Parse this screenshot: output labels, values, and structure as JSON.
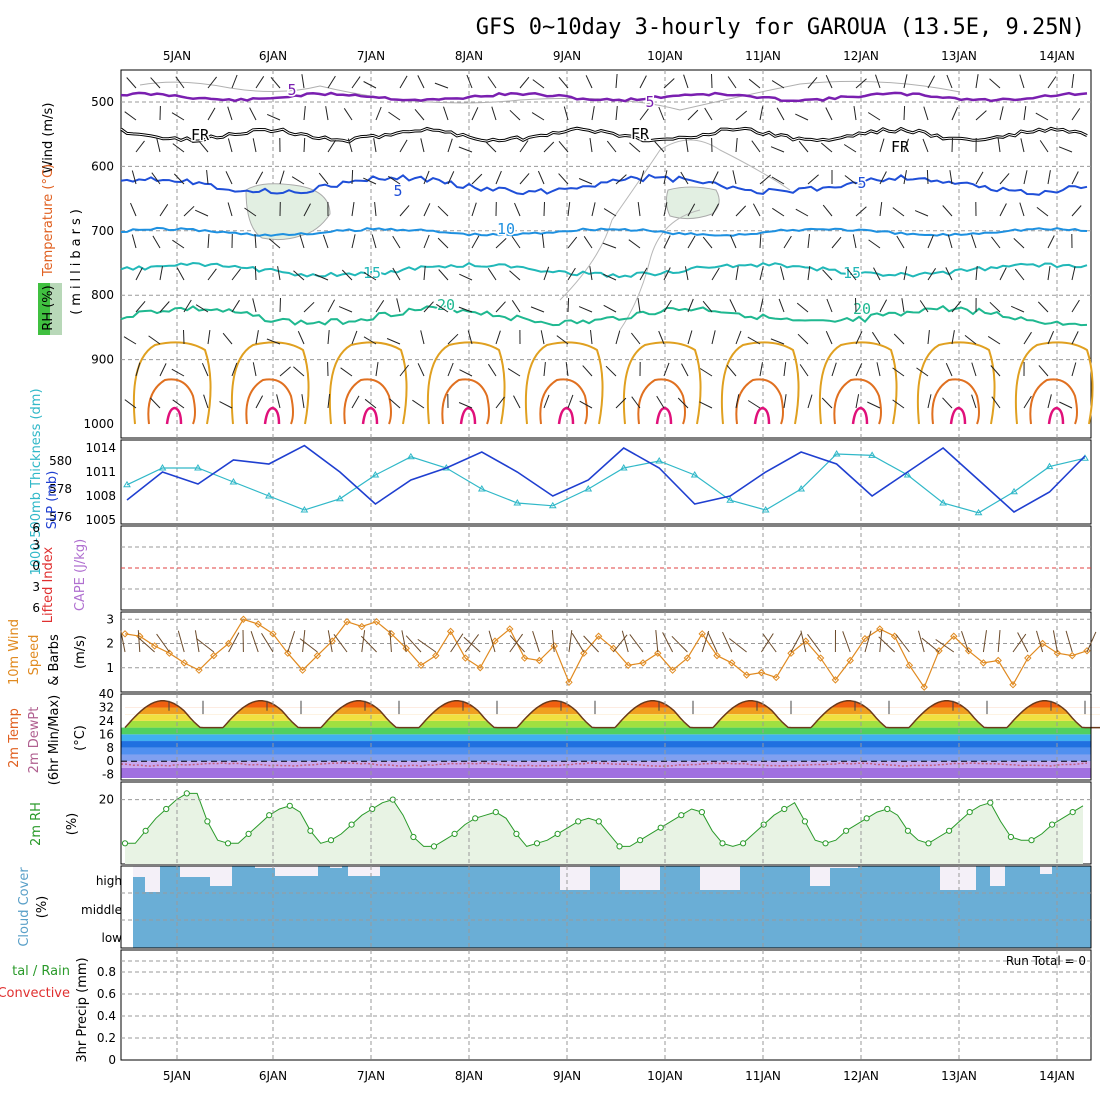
{
  "title": "GFS 0~10day 3-hourly for GAROUA (13.5E, 9.25N)",
  "colors": {
    "temp500": "#7a1fb0",
    "frz": "#000000",
    "t5": "#1f4fd8",
    "t10": "#1e90e0",
    "t15": "#21b8b8",
    "t20": "#1fb890",
    "t25": "#e0a020",
    "t30": "#e07020",
    "t35": "#e0107a",
    "slp": "#1f3fd0",
    "thick": "#30b8c8",
    "wind": "#e08a20",
    "barb": "#6b4a2a",
    "rh2m": "#2a9a2a",
    "rh2mfill": "#e8f3e4",
    "cloud": "#6aaed6",
    "precip": "#2a9a2a"
  },
  "days": [
    "5JAN",
    "6JAN",
    "7JAN",
    "8JAN",
    "9JAN",
    "10JAN",
    "11JAN",
    "12JAN",
    "13JAN",
    "14JAN"
  ],
  "panels": {
    "upper": {
      "ylabel_parts": [
        "Wind (m/s)",
        "Temperature (°C)",
        "(millibars)",
        "RH (%)"
      ],
      "wind_label": "Wind (m/s)",
      "temp_label": "Temperature (°C)",
      "mb_label": "(millibars)",
      "rh_label": "RH (%)",
      "levels": [
        500,
        600,
        700,
        800,
        900,
        1000
      ],
      "contour_labels": [
        {
          "text": "5",
          "color": "#7a1fb0"
        },
        {
          "text": "5",
          "color": "#7a1fb0"
        },
        {
          "text": "FR",
          "color": "#000000"
        },
        {
          "text": "FR",
          "color": "#000000"
        },
        {
          "text": "FR",
          "color": "#000000"
        },
        {
          "text": "5",
          "color": "#1f4fd8"
        },
        {
          "text": "5",
          "color": "#1f4fd8"
        },
        {
          "text": "10",
          "color": "#1e90e0"
        },
        {
          "text": "15",
          "color": "#21b8b8"
        },
        {
          "text": "15",
          "color": "#21b8b8"
        },
        {
          "text": "20",
          "color": "#1fb890"
        },
        {
          "text": "20",
          "color": "#1fb890"
        }
      ]
    },
    "slp": {
      "label_thick": "1000-500mb Thickness (dm)",
      "label_slp": "SLP (mb)",
      "thick_ticks": [
        576,
        578,
        580
      ],
      "slp_ticks": [
        1005,
        1008,
        1011,
        1014
      ]
    },
    "cape": {
      "label_li": "Lifted Index",
      "label_cape": "CAPE (J/kg)",
      "li_ticks": [
        "6",
        "3",
        "0",
        "3",
        "6"
      ]
    },
    "wind10": {
      "label": "10m Wind",
      "label2": "Speed",
      "label3": "& Barbs",
      "units": "(m/s)",
      "ticks": [
        1,
        2,
        3
      ]
    },
    "temp2m": {
      "label": "2m Temp",
      "label2": "2m DewPt",
      "label3": "(6hr Min/Max)",
      "units": "(°C)",
      "ticks": [
        "-8",
        "0",
        "8",
        "16",
        "24",
        "32",
        "40"
      ]
    },
    "rh2m": {
      "label": "2m RH",
      "units": "(%)",
      "ticks": [
        20
      ]
    },
    "cloud": {
      "label": "Cloud Cover",
      "units": "(%)",
      "ticks": [
        "high",
        "middle",
        "low"
      ]
    },
    "precip": {
      "label_a": "tal / Rain",
      "label_b": "Convective",
      "label_c": "3hr Precip (mm)",
      "run_total": "Run Total = 0",
      "ticks": [
        "0",
        "0.2",
        "0.4",
        "0.6",
        "0.8"
      ]
    }
  },
  "chart_data": [
    {
      "type": "line",
      "panel": "pressure-level temperature / wind / RH",
      "xlabel": "",
      "ylabel": "(millibars)",
      "ylim": [
        1000,
        450
      ],
      "y_log_like": false,
      "series": [
        {
          "name": "-5",
          "approx_level_mb": 495
        },
        {
          "name": "FR",
          "approx_level_mb": 550
        },
        {
          "name": "5",
          "approx_level_mb": 630
        },
        {
          "name": "10",
          "approx_level_mb": 700
        },
        {
          "name": "15",
          "approx_level_mb": 765
        },
        {
          "name": "20",
          "approx_level_mb": 835
        }
      ]
    },
    {
      "type": "line",
      "panel": "SLP and 1000-500mb thickness",
      "x": [
        0,
        3,
        6,
        9,
        12,
        15,
        18,
        21,
        24,
        27,
        30,
        33,
        36,
        39,
        42,
        45,
        48,
        51,
        54,
        57,
        60,
        63,
        66,
        69,
        72,
        75,
        78,
        81
      ],
      "series": [
        {
          "name": "SLP (mb)",
          "axis": "right",
          "values": [
            1007.5,
            1011,
            1009.5,
            1012.5,
            1012,
            1014.3,
            1011,
            1007,
            1010,
            1011.5,
            1013.5,
            1011,
            1008,
            1010,
            1014,
            1011.5,
            1007,
            1008,
            1011,
            1013.5,
            1012,
            1008,
            1011,
            1014,
            1010,
            1006,
            1008.5,
            1013
          ]
        },
        {
          "name": "1000-500mb Thickness (dm)",
          "axis": "left",
          "values": [
            578.3,
            579.5,
            579.5,
            578.5,
            577.5,
            576.5,
            577.3,
            579,
            580.3,
            579.5,
            578,
            577,
            576.8,
            578,
            579.5,
            580,
            579,
            577.2,
            576.5,
            578,
            580.5,
            580.4,
            579,
            577,
            576.3,
            577.8,
            579.6,
            580.2
          ]
        }
      ],
      "ylim_left": [
        575.5,
        581.5
      ],
      "ylim_right": [
        1004.5,
        1015
      ]
    },
    {
      "type": "line",
      "panel": "10m wind speed",
      "ylabel": "(m/s)",
      "ylim": [
        0,
        3.3
      ],
      "series": [
        {
          "name": "Speed",
          "values": [
            2.4,
            2.3,
            1.9,
            1.6,
            1.2,
            0.9,
            1.5,
            2.0,
            3.0,
            2.8,
            2.4,
            1.6,
            0.9,
            1.5,
            2.1,
            2.9,
            2.7,
            2.9,
            2.4,
            1.8,
            1.1,
            1.5,
            2.5,
            1.4,
            1.0,
            2.1,
            2.6,
            1.4,
            1.3,
            1.9,
            0.4,
            1.6,
            2.3,
            1.8,
            1.1,
            1.2,
            1.6,
            0.9,
            1.4,
            2.4,
            1.5,
            1.2,
            0.7,
            0.8,
            0.6,
            1.6,
            2.1,
            1.4,
            0.5,
            1.3,
            2.2,
            2.6,
            2.3,
            1.1,
            0.2,
            1.7,
            2.3,
            1.7,
            1.2,
            1.3,
            0.3,
            1.4,
            2.0,
            1.6,
            1.5,
            1.7
          ]
        }
      ]
    },
    {
      "type": "line",
      "panel": "2m temperature / dewpoint",
      "ylabel": "(°C)",
      "ylim": [
        -10,
        40
      ],
      "series": [
        {
          "name": "2m Temp",
          "daily_min": 22,
          "daily_max": 36
        },
        {
          "name": "2m DewPt",
          "approx": -4
        }
      ]
    },
    {
      "type": "area",
      "panel": "2m RH",
      "ylabel": "(%)",
      "series": [
        {
          "name": "2m RH",
          "values": [
            6,
            6,
            10,
            14,
            17,
            20,
            22,
            22,
            13,
            7,
            6,
            6,
            9,
            12,
            15,
            17,
            18,
            16,
            10,
            6,
            7,
            9,
            12,
            15,
            17,
            19,
            20,
            15,
            8,
            5,
            5,
            7,
            9,
            12,
            14,
            15,
            16,
            14,
            9,
            5,
            6,
            7,
            9,
            11,
            13,
            14,
            13,
            9,
            5,
            5,
            7,
            9,
            11,
            13,
            15,
            17,
            16,
            10,
            6,
            5,
            6,
            9,
            12,
            15,
            17,
            19,
            13,
            7,
            6,
            7,
            10,
            12,
            14,
            16,
            17,
            15,
            10,
            7,
            6,
            8,
            10,
            13,
            16,
            18,
            19,
            13,
            8,
            7,
            7,
            9,
            12,
            14,
            16,
            18
          ]
        }
      ]
    },
    {
      "type": "bar",
      "panel": "cloud cover",
      "series": [
        {
          "name": "high",
          "values": "mostly overcast"
        },
        {
          "name": "middle",
          "values": "overcast"
        },
        {
          "name": "low",
          "values": "overcast"
        }
      ]
    },
    {
      "type": "bar",
      "panel": "3hr precip",
      "ylabel": "3hr Precip (mm)",
      "ylim": [
        0,
        1
      ],
      "series": [
        {
          "name": "3hr Precip",
          "values": [
            0
          ]
        }
      ]
    }
  ]
}
